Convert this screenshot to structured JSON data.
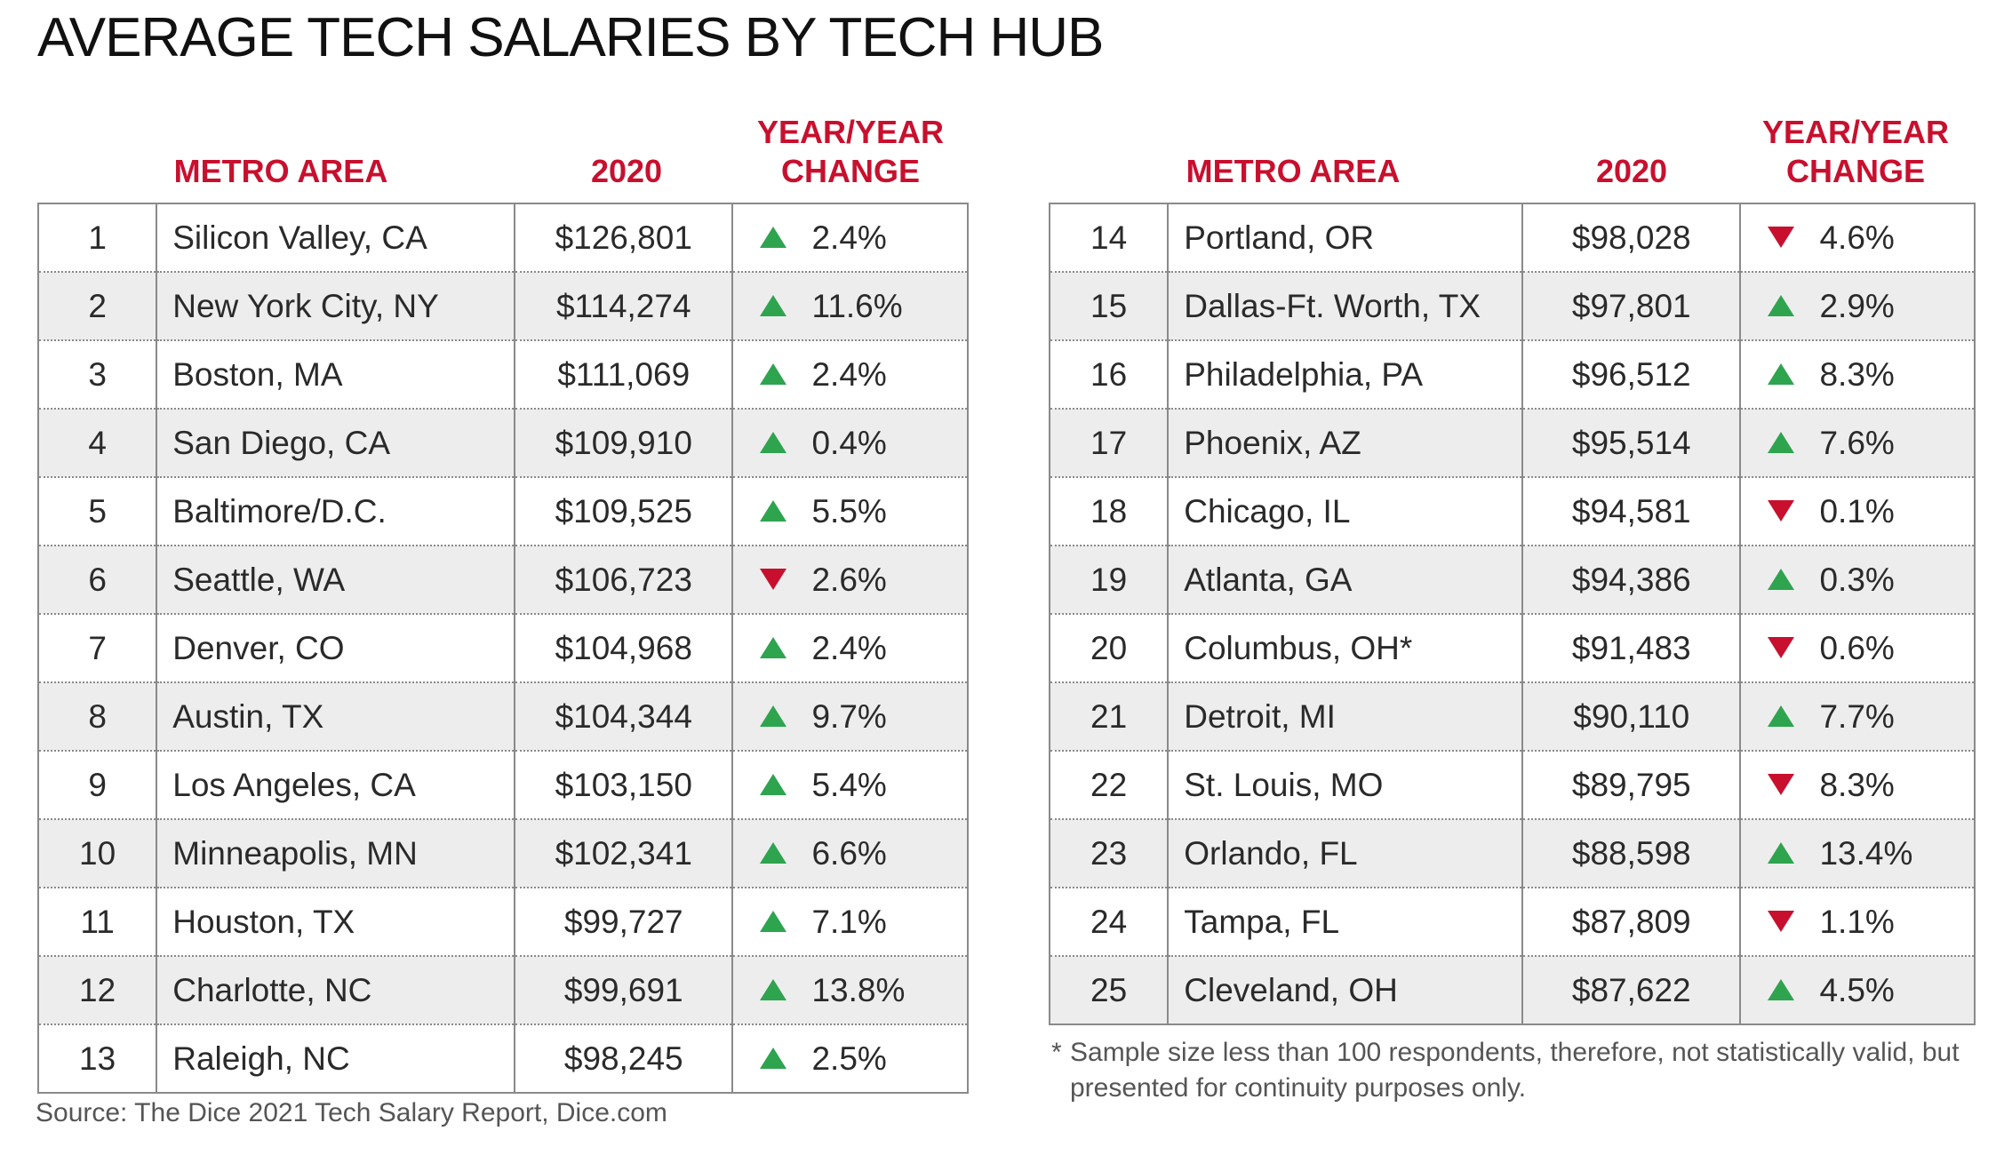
{
  "title": "AVERAGE TECH SALARIES BY TECH HUB",
  "headers": {
    "metro": "METRO AREA",
    "year": "2020",
    "change_line1": "YEAR/YEAR",
    "change_line2": "CHANGE"
  },
  "colors": {
    "up": "#2ea44f",
    "down": "#c8102e",
    "header": "#c8102e"
  },
  "icons": {
    "up": "triangle-up",
    "down": "triangle-down"
  },
  "chart_data": {
    "type": "table",
    "title": "AVERAGE TECH SALARIES BY TECH HUB",
    "columns": [
      "",
      "METRO AREA",
      "2020",
      "YEAR/YEAR CHANGE"
    ],
    "rows": [
      {
        "rank": "1",
        "metro": "Silicon Valley, CA",
        "salary": "$126,801",
        "direction": "up",
        "change": "2.4%"
      },
      {
        "rank": "2",
        "metro": "New York City, NY",
        "salary": "$114,274",
        "direction": "up",
        "change": "11.6%"
      },
      {
        "rank": "3",
        "metro": "Boston, MA",
        "salary": "$111,069",
        "direction": "up",
        "change": "2.4%"
      },
      {
        "rank": "4",
        "metro": "San Diego, CA",
        "salary": "$109,910",
        "direction": "up",
        "change": "0.4%"
      },
      {
        "rank": "5",
        "metro": "Baltimore/D.C.",
        "salary": "$109,525",
        "direction": "up",
        "change": "5.5%"
      },
      {
        "rank": "6",
        "metro": "Seattle, WA",
        "salary": "$106,723",
        "direction": "down",
        "change": "2.6%"
      },
      {
        "rank": "7",
        "metro": "Denver, CO",
        "salary": "$104,968",
        "direction": "up",
        "change": "2.4%"
      },
      {
        "rank": "8",
        "metro": "Austin, TX",
        "salary": "$104,344",
        "direction": "up",
        "change": "9.7%"
      },
      {
        "rank": "9",
        "metro": "Los Angeles, CA",
        "salary": "$103,150",
        "direction": "up",
        "change": "5.4%"
      },
      {
        "rank": "10",
        "metro": "Minneapolis, MN",
        "salary": "$102,341",
        "direction": "up",
        "change": "6.6%"
      },
      {
        "rank": "11",
        "metro": "Houston, TX",
        "salary": "$99,727",
        "direction": "up",
        "change": "7.1%"
      },
      {
        "rank": "12",
        "metro": "Charlotte, NC",
        "salary": "$99,691",
        "direction": "up",
        "change": "13.8%"
      },
      {
        "rank": "13",
        "metro": "Raleigh, NC",
        "salary": "$98,245",
        "direction": "up",
        "change": "2.5%"
      },
      {
        "rank": "14",
        "metro": "Portland, OR",
        "salary": "$98,028",
        "direction": "down",
        "change": "4.6%"
      },
      {
        "rank": "15",
        "metro": "Dallas-Ft. Worth, TX",
        "salary": "$97,801",
        "direction": "up",
        "change": "2.9%"
      },
      {
        "rank": "16",
        "metro": "Philadelphia, PA",
        "salary": "$96,512",
        "direction": "up",
        "change": "8.3%"
      },
      {
        "rank": "17",
        "metro": "Phoenix, AZ",
        "salary": "$95,514",
        "direction": "up",
        "change": "7.6%"
      },
      {
        "rank": "18",
        "metro": "Chicago, IL",
        "salary": "$94,581",
        "direction": "down",
        "change": "0.1%"
      },
      {
        "rank": "19",
        "metro": "Atlanta, GA",
        "salary": "$94,386",
        "direction": "up",
        "change": "0.3%"
      },
      {
        "rank": "20",
        "metro": "Columbus, OH*",
        "salary": "$91,483",
        "direction": "down",
        "change": "0.6%"
      },
      {
        "rank": "21",
        "metro": "Detroit, MI",
        "salary": "$90,110",
        "direction": "up",
        "change": "7.7%"
      },
      {
        "rank": "22",
        "metro": "St. Louis, MO",
        "salary": "$89,795",
        "direction": "down",
        "change": "8.3%"
      },
      {
        "rank": "23",
        "metro": "Orlando, FL",
        "salary": "$88,598",
        "direction": "up",
        "change": "13.4%"
      },
      {
        "rank": "24",
        "metro": "Tampa, FL",
        "salary": "$87,809",
        "direction": "down",
        "change": "1.1%"
      },
      {
        "rank": "25",
        "metro": "Cleveland, OH",
        "salary": "$87,622",
        "direction": "up",
        "change": "4.5%"
      }
    ]
  },
  "footnote": {
    "mark": "*",
    "text": "Sample size less than 100 respondents, therefore, not statistically valid, but presented for continuity purposes only."
  },
  "source": "Source: The Dice 2021 Tech Salary Report, Dice.com"
}
